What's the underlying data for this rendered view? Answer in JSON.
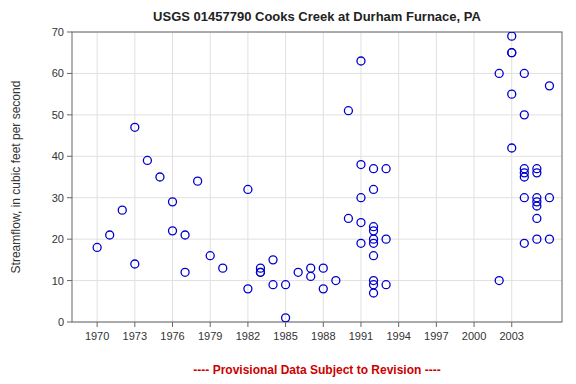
{
  "chart_data": {
    "type": "scatter",
    "title": "USGS 01457790 Cooks Creek at Durham Furnace, PA",
    "ylabel": "Streamflow, in cubic feet per second",
    "annotations": [
      {
        "text": "---- Provisional Data Subject to Revision ----",
        "color": "#cc0000"
      }
    ],
    "x": [
      1970,
      1971,
      1972,
      1973,
      1973,
      1974,
      1975,
      1976,
      1976,
      1977,
      1977,
      1978,
      1979,
      1980,
      1982,
      1982,
      1983,
      1983,
      1983,
      1984,
      1984,
      1985,
      1985,
      1986,
      1987,
      1987,
      1988,
      1988,
      1989,
      1990,
      1990,
      1991,
      1991,
      1991,
      1991,
      1991,
      1992,
      1992,
      1992,
      1992,
      1992,
      1992,
      1992,
      1992,
      1992,
      1992,
      1993,
      1993,
      1993,
      2002,
      2002,
      2003,
      2003,
      2003,
      2003,
      2003,
      2004,
      2004,
      2004,
      2004,
      2004,
      2004,
      2004,
      2005,
      2005,
      2005,
      2005,
      2005,
      2005,
      2005,
      2006,
      2006,
      2006
    ],
    "values": [
      18,
      21,
      27,
      47,
      14,
      39,
      35,
      22,
      29,
      21,
      12,
      34,
      16,
      13,
      8,
      32,
      12,
      12,
      13,
      15,
      9,
      1,
      9,
      12,
      11,
      13,
      8,
      13,
      10,
      51,
      25,
      63,
      38,
      30,
      24,
      19,
      37,
      32,
      23,
      22,
      20,
      19,
      16,
      10,
      9,
      7,
      37,
      20,
      9,
      60,
      10,
      69,
      65,
      65,
      55,
      42,
      60,
      50,
      37,
      36,
      35,
      30,
      19,
      37,
      36,
      30,
      29,
      28,
      25,
      20,
      57,
      30,
      20
    ],
    "color": "#0000cc",
    "marker": "circle",
    "xlim": [
      1968,
      2007
    ],
    "ylim": [
      0,
      70
    ],
    "xticks": [
      1970,
      1973,
      1976,
      1979,
      1982,
      1985,
      1988,
      1991,
      1994,
      1997,
      2000,
      2003
    ],
    "yticks": [
      0,
      10,
      20,
      30,
      40,
      50,
      60,
      70
    ],
    "grid": true
  }
}
